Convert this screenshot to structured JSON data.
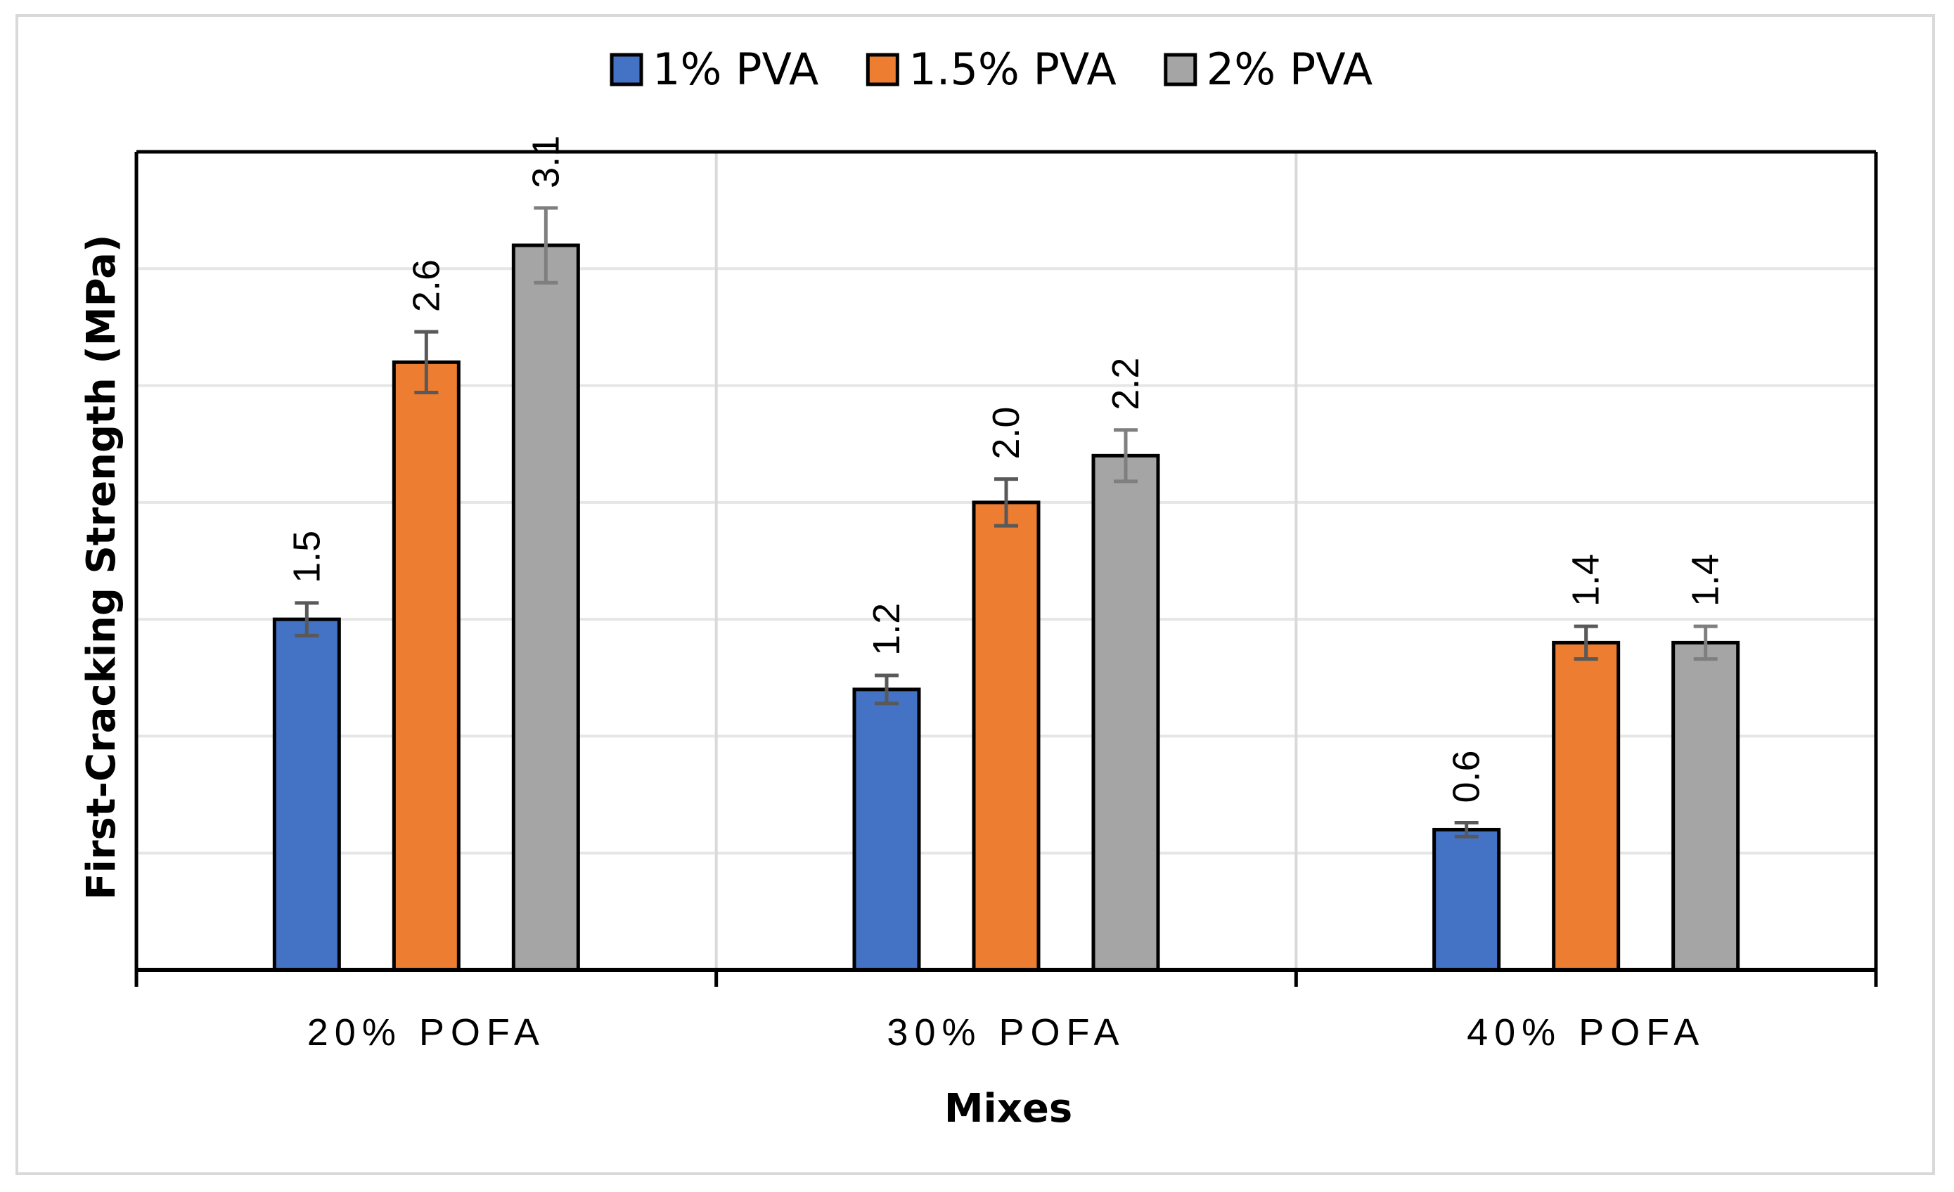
{
  "chart_data": {
    "type": "bar",
    "categories": [
      "20% POFA",
      "30% POFA",
      "40% POFA"
    ],
    "series": [
      {
        "name": "1% PVA",
        "color": "#4472c4",
        "values": [
          1.5,
          1.2,
          0.6
        ],
        "labels": [
          "1.5",
          "1.2",
          "0.6"
        ],
        "errors": [
          0.07,
          0.06,
          0.03
        ]
      },
      {
        "name": "1.5% PVA",
        "color": "#ed7d31",
        "values": [
          2.6,
          2.0,
          1.4
        ],
        "labels": [
          "2.6",
          "2.0",
          "1.4"
        ],
        "errors": [
          0.13,
          0.1,
          0.07
        ]
      },
      {
        "name": "2% PVA",
        "color": "#a5a5a5",
        "values": [
          3.1,
          2.2,
          1.4
        ],
        "labels": [
          "3.1",
          "2.2",
          "1.4"
        ],
        "errors": [
          0.16,
          0.11,
          0.07
        ]
      }
    ],
    "title": "",
    "xlabel": "Mixes",
    "ylabel": "First-Cracking Strength (MPa)",
    "ylim": [
      0,
      3.5
    ],
    "ytick_step": 0.5,
    "y_tick_labels_shown": false,
    "grid": {
      "horizontal": true,
      "vertical_category_separators": true
    },
    "legend": "top"
  }
}
